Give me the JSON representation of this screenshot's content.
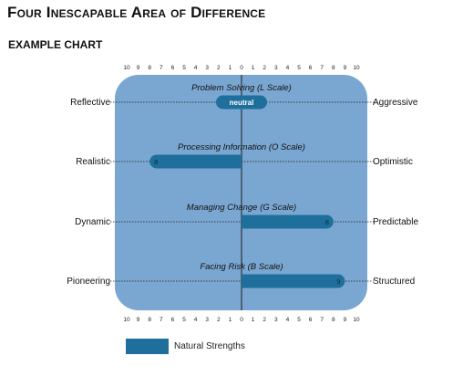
{
  "title": "Four Inescapable Area of Difference",
  "subtitle": "EXAMPLE CHART",
  "legend": {
    "label": "Natural Strengths"
  },
  "colors": {
    "panel": "#7aa7d1",
    "bar": "#1f6f9c",
    "bar_text": "#0b2a3a"
  },
  "chart_data": {
    "type": "bar",
    "orientation": "horizontal-diverging",
    "x_scale": {
      "min": -10,
      "max": 10,
      "ticks_label": [
        "10",
        "9",
        "8",
        "7",
        "6",
        "5",
        "4",
        "3",
        "2",
        "1",
        "0",
        "1",
        "2",
        "3",
        "4",
        "5",
        "6",
        "7",
        "8",
        "9",
        "10"
      ]
    },
    "rows": [
      {
        "title": "Problem Solving (L Scale)",
        "left_label": "Reflective",
        "right_label": "Aggressive",
        "value": 0,
        "value_label": "neutral",
        "neutral": true
      },
      {
        "title": "Processing Information (O Scale)",
        "left_label": "Realistic",
        "right_label": "Optimistic",
        "value": -8,
        "value_label": "8"
      },
      {
        "title": "Managing Change (G Scale)",
        "left_label": "Dynamic",
        "right_label": "Predictable",
        "value": 8,
        "value_label": "8"
      },
      {
        "title": "Facing Risk (B Scale)",
        "left_label": "Pioneering",
        "right_label": "Structured",
        "value": 9,
        "value_label": "9"
      }
    ],
    "series": [
      {
        "name": "Natural Strengths"
      }
    ],
    "legend_position": "bottom-left"
  }
}
